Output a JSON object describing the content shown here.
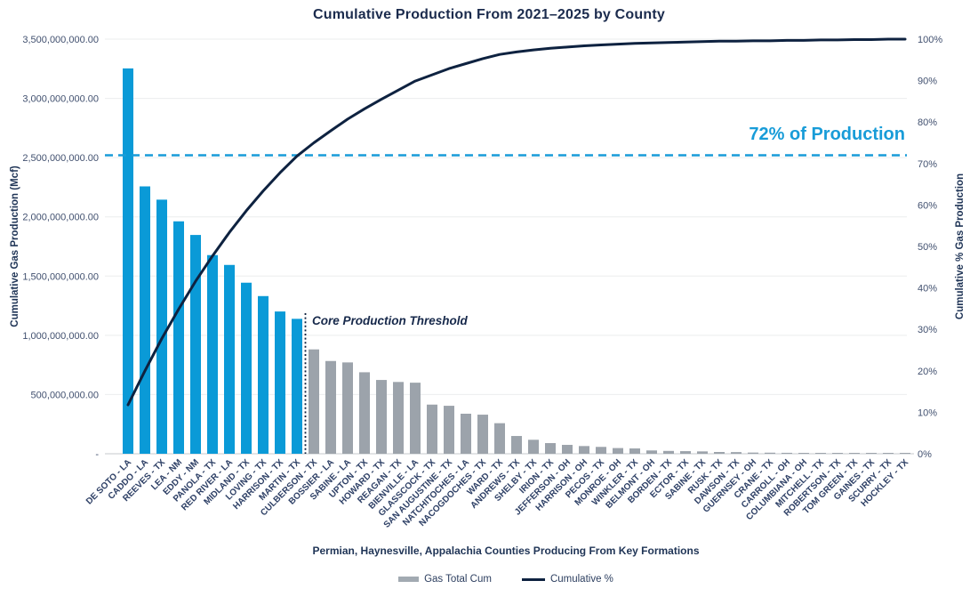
{
  "title": "Cumulative Production From 2021–2025 by County",
  "axes": {
    "left": {
      "title": "Cumulative Gas Production (Mcf)",
      "tick_labels": [
        "3,500,000,000.00",
        "3,000,000,000.00",
        "2,500,000,000.00",
        "2,000,000,000.00",
        "1,500,000,000.00",
        "1,000,000,000.00",
        "500,000,000.00",
        "-"
      ]
    },
    "right": {
      "title": "Cumulative % Gas Production",
      "tick_labels": [
        "100%",
        "90%",
        "80%",
        "70%",
        "60%",
        "50%",
        "40%",
        "30%",
        "20%",
        "10%",
        "0%"
      ]
    },
    "x": {
      "title": "Permian, Haynesville, Appalachia Counties Producing From Key Formations"
    }
  },
  "annotations": {
    "production_threshold_label": "72% of Production",
    "core_threshold_label": "Core Production Threshold"
  },
  "legend": {
    "bar_label": "Gas Total Cum",
    "line_label": "Cumulative %"
  },
  "colors": {
    "core_bar": "#0a9ad7",
    "bar": "#9ca3ab",
    "cumulative_line": "#0e2240",
    "threshold_dash": "#189cd8",
    "tick_text": "#41506f",
    "x_label_text": "#2e4066",
    "gridline": "#ebedee",
    "axis_line": "#d8dbdd"
  },
  "chart_data": {
    "type": "bar",
    "subtype": "pareto (bar + cumulative % line)",
    "title": "Cumulative Production From 2021–2025 by County",
    "xlabel": "Permian, Haynesville, Appalachia Counties Producing From Key Formations",
    "ylabel_left": "Cumulative Gas Production (Mcf)",
    "ylabel_right": "Cumulative % Gas Production",
    "ylim_left": [
      0,
      3500000000
    ],
    "ylim_right_pct": [
      0,
      100
    ],
    "grid": "horizontal major gridlines",
    "legend_position": "bottom",
    "core_county_count": 11,
    "threshold_pct": 72,
    "categories": [
      "DE SOTO - LA",
      "CADDO - LA",
      "REEVES - TX",
      "LEA - NM",
      "EDDY - NM",
      "PANOLA - TX",
      "RED RIVER - LA",
      "MIDLAND - TX",
      "LOVING - TX",
      "HARRISON - TX",
      "MARTIN - TX",
      "CULBERSON - TX",
      "BOSSIER - LA",
      "SABINE - LA",
      "UPTON - TX",
      "HOWARD - TX",
      "REAGAN - TX",
      "BIENVILLE - LA",
      "GLASSCOCK - TX",
      "SAN AUGUSTINE - TX",
      "NATCHITOCHES - LA",
      "NACOGDOCHES - TX",
      "WARD - TX",
      "ANDREWS - TX",
      "SHELBY - TX",
      "IRION - TX",
      "JEFFERSON - OH",
      "HARRISON - OH",
      "PECOS - TX",
      "MONROE - OH",
      "WINKLER - TX",
      "BELMONT - OH",
      "BORDEN - TX",
      "ECTOR - TX",
      "SABINE - TX",
      "RUSK - TX",
      "DAWSON - TX",
      "GUERNSEY - OH",
      "CRANE - TX",
      "CARROLL - OH",
      "COLUMBIANA - OH",
      "MITCHELL - TX",
      "ROBERTSON - TX",
      "TOM GREEN - TX",
      "GAINES - TX",
      "SCURRY - TX",
      "HOCKLEY - TX"
    ],
    "series": [
      {
        "name": "Gas Total Cum",
        "type": "bar",
        "unit": "Mcf",
        "values": [
          3253000000,
          2257000000,
          2145000000,
          1962000000,
          1847000000,
          1677000000,
          1594000000,
          1444000000,
          1331000000,
          1201000000,
          1139000000,
          881000000,
          783000000,
          771000000,
          688000000,
          623000000,
          606000000,
          600000000,
          415000000,
          405000000,
          338000000,
          330000000,
          258000000,
          150000000,
          118000000,
          90000000,
          75000000,
          65000000,
          58000000,
          48000000,
          45000000,
          28000000,
          24000000,
          22000000,
          20000000,
          15000000,
          14000000,
          10000000,
          9000000,
          8000000,
          7000000,
          5000000,
          4000000,
          3000000,
          3000000,
          2000000,
          2000000
        ]
      },
      {
        "name": "Cumulative %",
        "type": "line",
        "unit": "%",
        "values": [
          11.8,
          20.0,
          27.8,
          34.9,
          41.6,
          47.7,
          53.4,
          58.6,
          63.4,
          67.8,
          71.8,
          75.0,
          77.9,
          80.7,
          83.2,
          85.5,
          87.7,
          89.9,
          91.4,
          92.9,
          94.1,
          95.3,
          96.3,
          96.9,
          97.4,
          97.8,
          98.1,
          98.4,
          98.6,
          98.8,
          99.0,
          99.1,
          99.2,
          99.3,
          99.4,
          99.5,
          99.5,
          99.6,
          99.6,
          99.7,
          99.7,
          99.8,
          99.8,
          99.9,
          99.9,
          100.0,
          100.0
        ]
      }
    ]
  }
}
